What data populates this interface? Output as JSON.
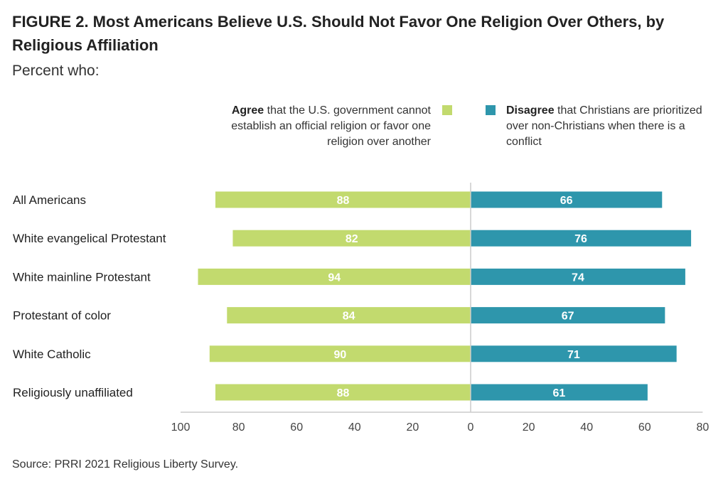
{
  "header": {
    "title": "FIGURE 2.  Most Americans Believe U.S. Should Not Favor One Religion Over Others, by Religious Affiliation",
    "subtitle": "Percent who:"
  },
  "legend": {
    "agree_bold": "Agree",
    "agree_rest": " that the U.S. government cannot establish an official religion or favor one religion over another",
    "disagree_bold": "Disagree",
    "disagree_rest": " that Christians are prioritized over non-Christians when there is a conflict"
  },
  "colors": {
    "agree": "#c2da6e",
    "disagree": "#2e96ac",
    "axis": "#cccccc"
  },
  "chart_data": {
    "type": "bar",
    "orientation": "horizontal-diverging",
    "categories": [
      "All Americans",
      "White evangelical Protestant",
      "White mainline Protestant",
      "Protestant of color",
      "White Catholic",
      "Religiously unaffiliated"
    ],
    "series": [
      {
        "name": "Agree that the U.S. government cannot establish an official religion or favor one religion over another",
        "side": "left",
        "values": [
          88,
          82,
          94,
          84,
          90,
          88
        ]
      },
      {
        "name": "Disagree that Christians are prioritized over non-Christians when there is a conflict",
        "side": "right",
        "values": [
          66,
          76,
          74,
          67,
          71,
          61
        ]
      }
    ],
    "xlim_left": [
      0,
      100
    ],
    "xlim_right": [
      0,
      80
    ],
    "ticks_left": [
      "100",
      "80",
      "60",
      "40",
      "20",
      "0"
    ],
    "ticks_right": [
      "20",
      "40",
      "60",
      "80"
    ],
    "grid": false,
    "legend_position": "top"
  },
  "source": "Source: PRRI 2021 Religious Liberty Survey."
}
